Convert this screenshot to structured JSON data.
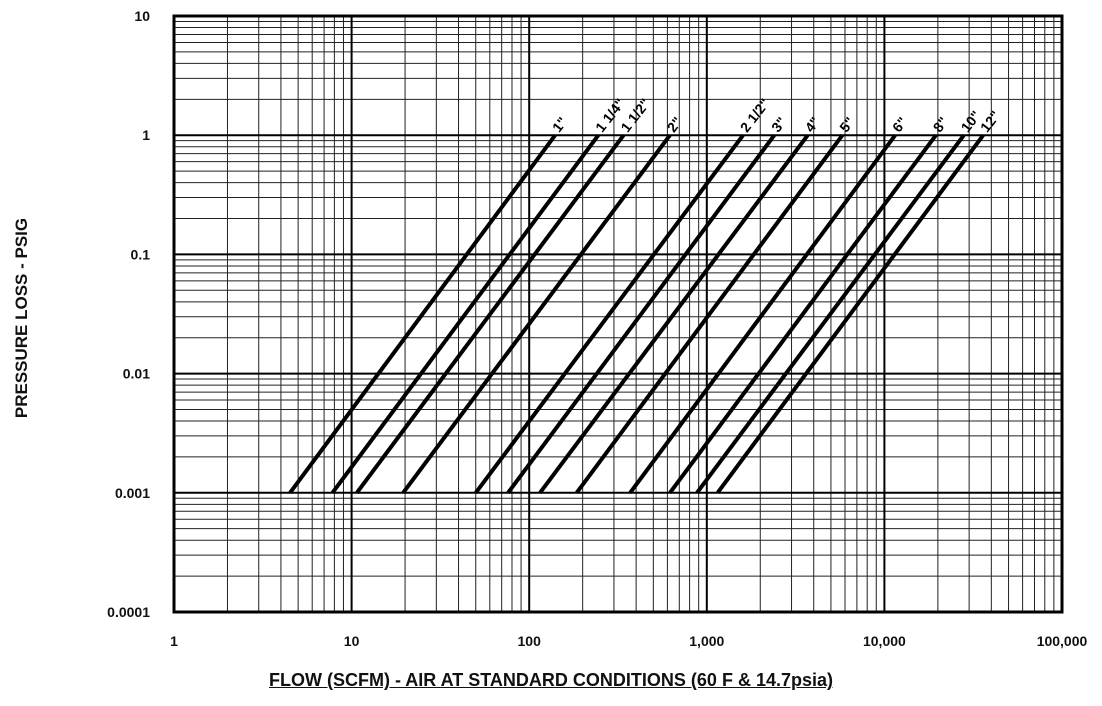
{
  "chart_data": {
    "type": "line",
    "title": "",
    "xlabel": "FLOW (SCFM) - AIR AT STANDARD CONDITIONS (60 F & 14.7psia)",
    "ylabel": "PRESSURE LOSS - PSIG",
    "xscale": "log",
    "yscale": "log",
    "xlim": [
      1,
      100000
    ],
    "ylim": [
      0.0001,
      10
    ],
    "grid": true,
    "x_ticks": [
      {
        "value": 1,
        "label": "1"
      },
      {
        "value": 10,
        "label": "10"
      },
      {
        "value": 100,
        "label": "100"
      },
      {
        "value": 1000,
        "label": "1,000"
      },
      {
        "value": 10000,
        "label": "10,000"
      },
      {
        "value": 100000,
        "label": "100,000"
      }
    ],
    "y_ticks": [
      {
        "value": 10,
        "label": "10"
      },
      {
        "value": 1,
        "label": "1"
      },
      {
        "value": 0.1,
        "label": "0.1"
      },
      {
        "value": 0.01,
        "label": "0.01"
      },
      {
        "value": 0.001,
        "label": "0.001"
      },
      {
        "value": 0.0001,
        "label": "0.0001"
      }
    ],
    "series": [
      {
        "name": "1\"",
        "x": [
          4.5,
          140
        ],
        "y": [
          0.001,
          1
        ]
      },
      {
        "name": "1 1/4\"",
        "x": [
          7.8,
          245
        ],
        "y": [
          0.001,
          1
        ]
      },
      {
        "name": "1 1/2\"",
        "x": [
          10.7,
          340
        ],
        "y": [
          0.001,
          1
        ]
      },
      {
        "name": "2\"",
        "x": [
          19.5,
          620
        ],
        "y": [
          0.001,
          1
        ]
      },
      {
        "name": "2 1/2\"",
        "x": [
          50,
          1600
        ],
        "y": [
          0.001,
          1
        ]
      },
      {
        "name": "3\"",
        "x": [
          76,
          2400
        ],
        "y": [
          0.001,
          1
        ]
      },
      {
        "name": "4\"",
        "x": [
          115,
          3700
        ],
        "y": [
          0.001,
          1
        ]
      },
      {
        "name": "5\"",
        "x": [
          185,
          5800
        ],
        "y": [
          0.001,
          1
        ]
      },
      {
        "name": "6\"",
        "x": [
          370,
          11500
        ],
        "y": [
          0.001,
          1
        ]
      },
      {
        "name": "8\"",
        "x": [
          620,
          19500
        ],
        "y": [
          0.001,
          1
        ]
      },
      {
        "name": "10\"",
        "x": [
          880,
          28000
        ],
        "y": [
          0.001,
          1
        ]
      },
      {
        "name": "12\"",
        "x": [
          1150,
          36000
        ],
        "y": [
          0.001,
          1
        ]
      }
    ]
  }
}
